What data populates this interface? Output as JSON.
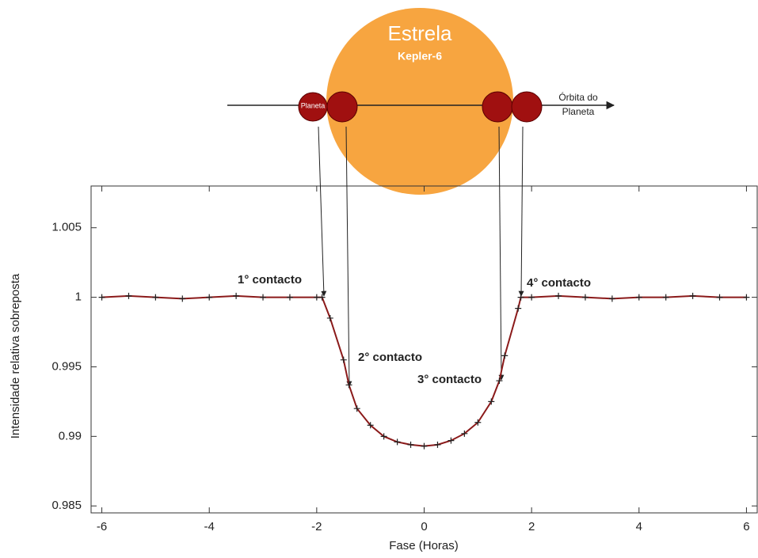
{
  "chart_data": {
    "type": "line",
    "xlabel": "Fase (Horas)",
    "ylabel": "Intensidade relativa sobreposta",
    "x": [
      -6,
      -5.5,
      -5,
      -4.5,
      -4,
      -3.5,
      -3,
      -2.5,
      -2,
      -1.9,
      -1.75,
      -1.5,
      -1.4,
      -1.25,
      -1,
      -0.75,
      -0.5,
      -0.25,
      0,
      0.25,
      0.5,
      0.75,
      1,
      1.25,
      1.4,
      1.5,
      1.75,
      1.8,
      2,
      2.5,
      3,
      3.5,
      4,
      4.5,
      5,
      5.5,
      6
    ],
    "series": [
      {
        "color": "#8b1a1a",
        "values": [
          1.0,
          1.0001,
          1.0,
          0.9999,
          1.0,
          1.0001,
          1.0,
          1.0,
          1.0,
          1.0,
          0.9985,
          0.9955,
          0.9937,
          0.992,
          0.9908,
          0.99,
          0.9896,
          0.9894,
          0.9893,
          0.9894,
          0.9897,
          0.9902,
          0.991,
          0.9925,
          0.994,
          0.9958,
          0.9992,
          1.0,
          1.0,
          1.0001,
          1.0,
          0.9999,
          1.0,
          1.0,
          1.0001,
          1.0,
          1.0
        ]
      }
    ],
    "xlim": [
      -6.2,
      6.2
    ],
    "xticks": [
      -6,
      -4,
      -2,
      0,
      2,
      4,
      6
    ],
    "ylim": [
      0.9845,
      1.008
    ],
    "yticks": [
      0.985,
      0.99,
      0.995,
      1,
      1.005
    ],
    "annotations": [
      "1° contacto",
      "2° contacto",
      "3° contacto",
      "4° contacto"
    ]
  },
  "diagram": {
    "star_label": "Estrela",
    "star_name": "Kepler-6",
    "planet_label": "Planeta",
    "orbit_label": [
      "Órbita do",
      "Planeta"
    ]
  }
}
